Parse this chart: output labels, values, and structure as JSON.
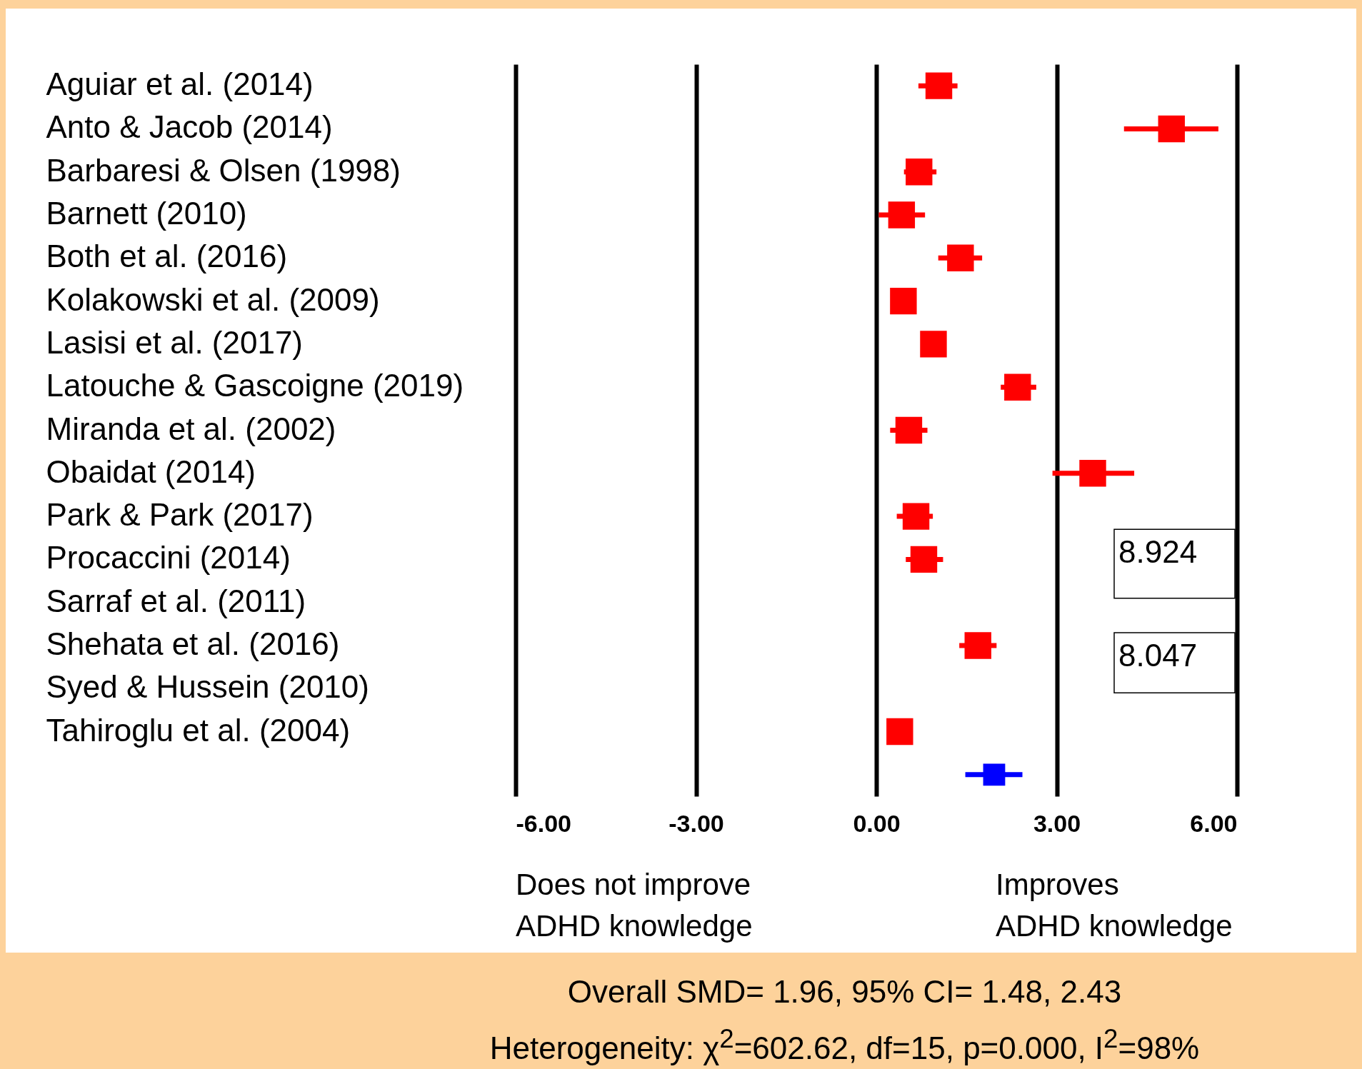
{
  "chart_data": {
    "type": "scatter",
    "categories": [
      "Aguiar et al. (2014)",
      "Anto & Jacob (2014)",
      "Barbaresi & Olsen (1998)",
      "Barnett (2010)",
      "Both et al. (2016)",
      "Kolakowski et al. (2009)",
      "Lasisi et al. (2017)",
      "Latouche & Gascoigne (2019)",
      "Miranda et al. (2002)",
      "Obaidat (2014)",
      "Park & Park (2017)",
      "Procaccini (2014)",
      "Sarraf et al. (2011)",
      "Shehata et al. (2016)",
      "Syed & Hussein (2010)",
      "Tahiroglu et al. (2004)",
      null
    ],
    "orientation": "horizontal",
    "series": [
      {
        "color": "#ff0000",
        "values": [
          1.04,
          4.91,
          0.71,
          0.42,
          1.4,
          0.45,
          0.95,
          2.35,
          0.54,
          3.6,
          0.66,
          0.79,
          null,
          1.69,
          null,
          0.39,
          null
        ],
        "errors": [
          [
            0.7,
            1.35
          ],
          [
            4.12,
            5.69
          ],
          [
            0.46,
            1.0
          ],
          [
            0.04,
            0.81
          ],
          [
            1.03,
            1.76
          ],
          null,
          null,
          [
            2.07,
            2.66
          ],
          [
            0.23,
            0.85
          ],
          [
            2.93,
            4.29
          ],
          [
            0.34,
            0.94
          ],
          [
            0.49,
            1.11
          ],
          null,
          [
            1.38,
            2.0
          ],
          null,
          null,
          null
        ]
      },
      {
        "color": "#0000ff",
        "values": [
          null,
          null,
          null,
          null,
          null,
          null,
          null,
          null,
          null,
          null,
          null,
          null,
          null,
          null,
          null,
          null,
          1.96
        ],
        "errors": [
          null,
          null,
          null,
          null,
          null,
          null,
          null,
          null,
          null,
          null,
          null,
          null,
          null,
          null,
          null,
          null,
          [
            1.48,
            2.43
          ]
        ]
      }
    ],
    "xlim": [
      -6,
      6
    ],
    "xticks": [
      {
        "value": -6,
        "label": "-6.00"
      },
      {
        "value": -3,
        "label": "-3.00"
      },
      {
        "value": 0,
        "label": "0.00"
      },
      {
        "value": 3,
        "label": "3.00"
      },
      {
        "value": 6,
        "label": "6.00"
      }
    ],
    "grid": "x",
    "marker": "square",
    "legend": false,
    "annotations": [
      "Does not improve\nADHD knowledge",
      "Improves\nADHD knowledge",
      "8.924",
      "8.047",
      "Overall SMD= 1.96, 95% CI= 1.48, 2.43",
      "Heterogeneity: χ$^{2}$=602.62, df=15, p=0.000, I$^{2}$=98%"
    ]
  }
}
